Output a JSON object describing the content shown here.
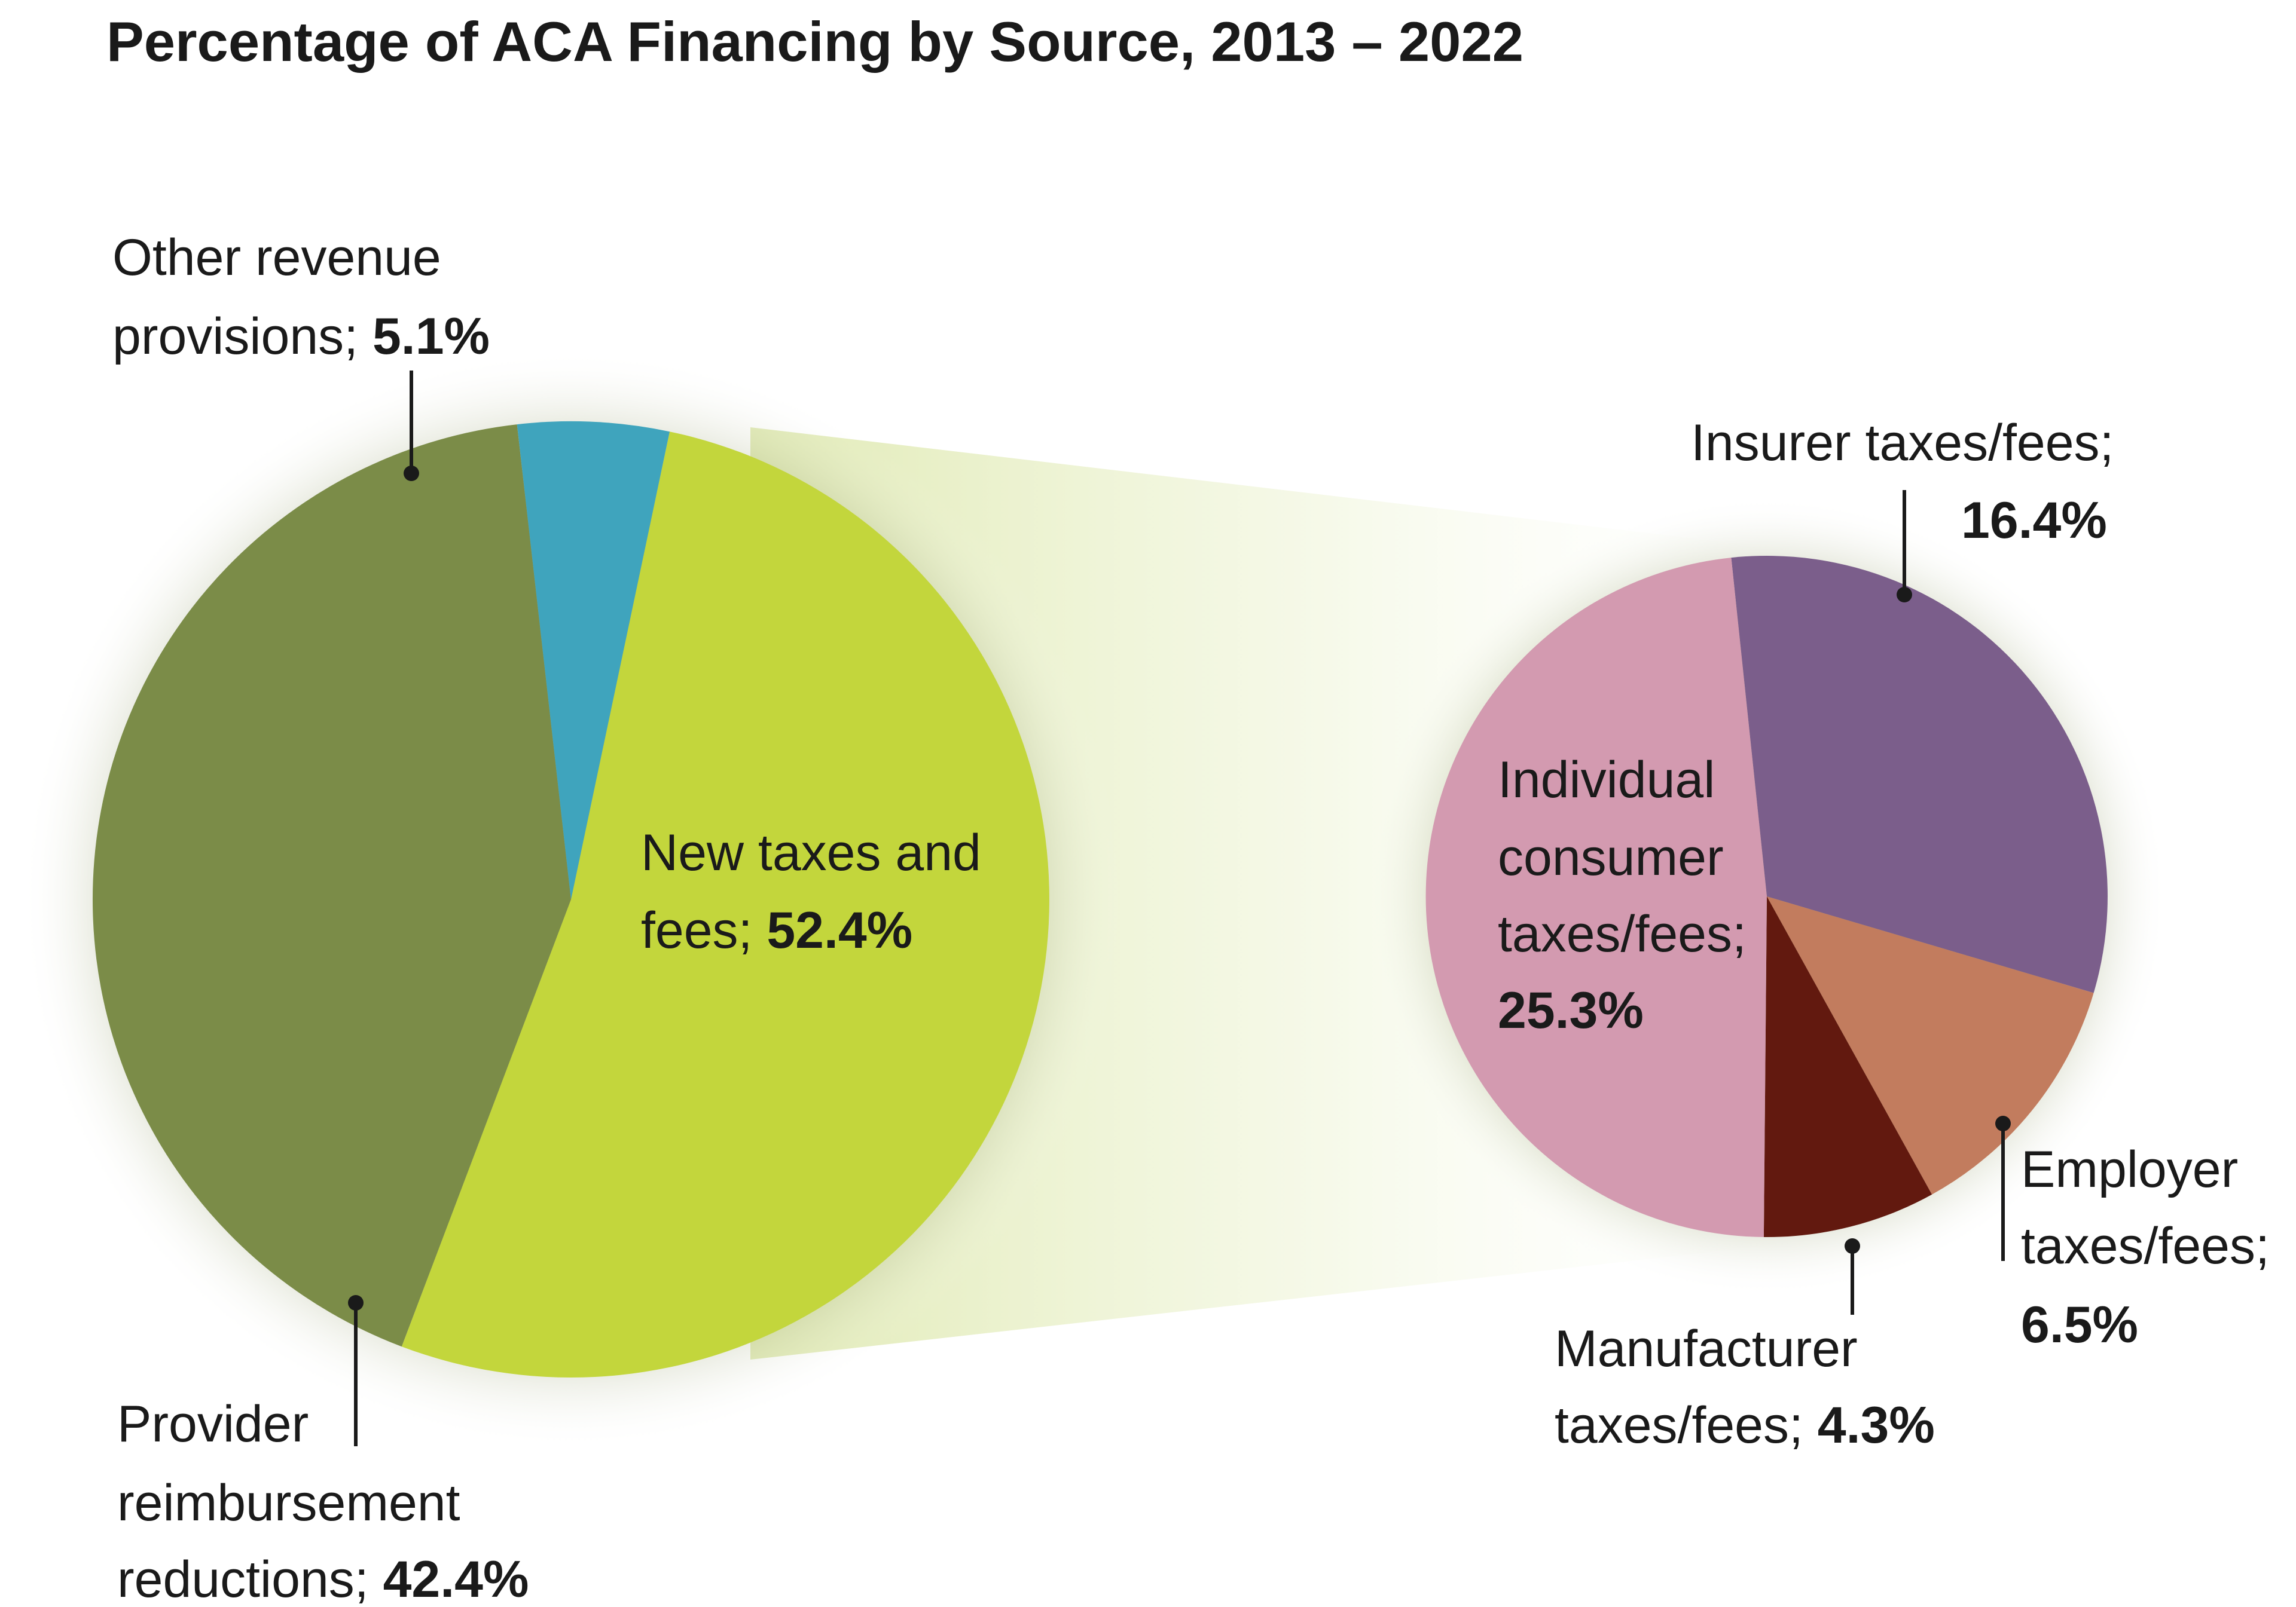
{
  "chart_data": [
    {
      "type": "pie",
      "title": "Percentage of ACA Financing by Source, 2013 – 2022",
      "slices": [
        {
          "label": "New taxes and fees",
          "label_lines": [
            "New taxes and",
            "fees; "
          ],
          "value": 52.4,
          "pct_text": "52.4%",
          "color": "#c3d63c"
        },
        {
          "label": "Provider reimbursement reductions",
          "label_lines": [
            "Provider",
            "reimbursement",
            "reductions; "
          ],
          "value": 42.4,
          "pct_text": "42.4%",
          "color": "#7b8c48"
        },
        {
          "label": "Other revenue provisions",
          "label_lines": [
            "Other revenue",
            "provisions; "
          ],
          "value": 5.1,
          "pct_text": "5.1%",
          "color": "#3fa4bd"
        }
      ]
    },
    {
      "type": "pie",
      "title": "",
      "slices": [
        {
          "label": "Insurer taxes/fees",
          "label_lines": [
            "Insurer taxes/fees;",
            ""
          ],
          "value": 16.4,
          "pct_text": "16.4%",
          "color": "#7b5e8b"
        },
        {
          "label": "Employer taxes/fees",
          "label_lines": [
            "Employer",
            "taxes/fees;",
            ""
          ],
          "value": 6.5,
          "pct_text": "6.5%",
          "color": "#c27c5e"
        },
        {
          "label": "Manufacturer taxes/fees",
          "label_lines": [
            "Manufacturer",
            "taxes/fees; "
          ],
          "value": 4.3,
          "pct_text": "4.3%",
          "color": "#62190f"
        },
        {
          "label": "Individual consumer taxes/fees",
          "label_lines": [
            "Individual",
            "consumer",
            "taxes/fees;",
            ""
          ],
          "value": 25.3,
          "pct_text": "25.3%",
          "color": "#d39ab0"
        }
      ]
    }
  ]
}
